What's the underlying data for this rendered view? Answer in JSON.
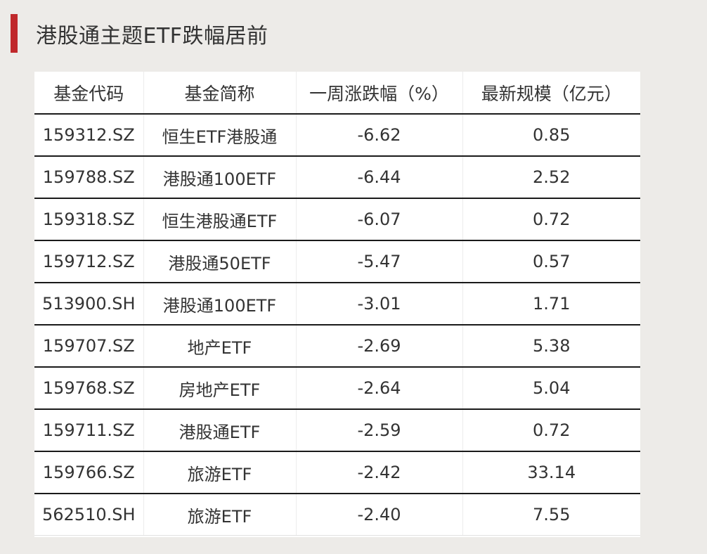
{
  "title": "港股通主题ETF跌幅居前",
  "colors": {
    "accent": "#c0282b",
    "background": "#edebe8",
    "table_bg": "#ffffff",
    "row_divider": "#1a1a1a"
  },
  "table": {
    "headers": [
      "基金代码",
      "基金简称",
      "一周涨跌幅（%）",
      "最新规模（亿元）"
    ],
    "rows": [
      [
        "159312.SZ",
        "恒生ETF港股通",
        "-6.62",
        "0.85"
      ],
      [
        "159788.SZ",
        "港股通100ETF",
        "-6.44",
        "2.52"
      ],
      [
        "159318.SZ",
        "恒生港股通ETF",
        "-6.07",
        "0.72"
      ],
      [
        "159712.SZ",
        "港股通50ETF",
        "-5.47",
        "0.57"
      ],
      [
        "513900.SH",
        "港股通100ETF",
        "-3.01",
        "1.71"
      ],
      [
        "159707.SZ",
        "地产ETF",
        "-2.69",
        "5.38"
      ],
      [
        "159768.SZ",
        "房地产ETF",
        "-2.64",
        "5.04"
      ],
      [
        "159711.SZ",
        "港股通ETF",
        "-2.59",
        "0.72"
      ],
      [
        "159766.SZ",
        "旅游ETF",
        "-2.42",
        "33.14"
      ],
      [
        "562510.SH",
        "旅游ETF",
        "-2.40",
        "7.55"
      ]
    ]
  }
}
